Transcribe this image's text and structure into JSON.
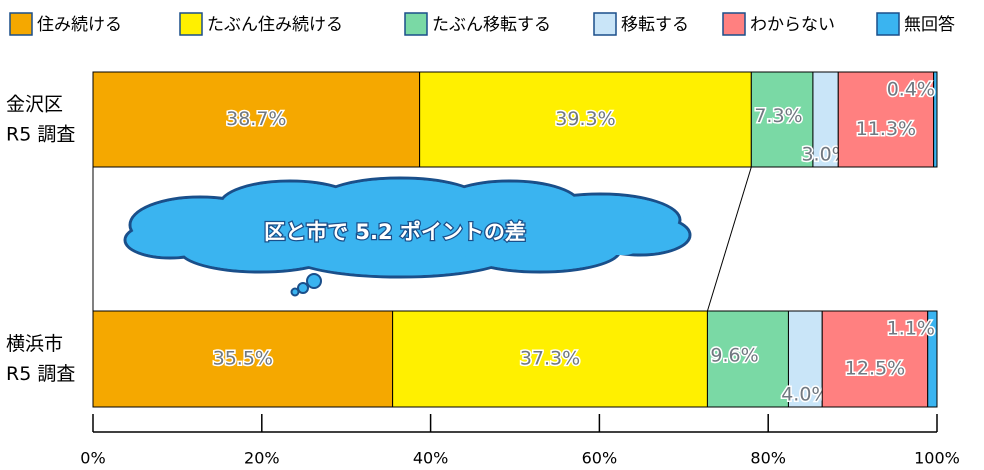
{
  "chart_data": {
    "type": "stacked-bar-horizontal",
    "categories": [
      "金沢区\nR5 調査",
      "横浜市\nR5 調査"
    ],
    "series": [
      {
        "name": "住み続ける",
        "color": "#f5a800",
        "values": [
          38.7,
          35.5
        ],
        "value_labels": [
          "38.7%",
          "35.5%"
        ]
      },
      {
        "name": "たぶん住み続ける",
        "color": "#fff000",
        "values": [
          39.3,
          37.3
        ],
        "value_labels": [
          "39.3%",
          "37.3%"
        ]
      },
      {
        "name": "たぶん移転する",
        "color": "#7ad9a5",
        "values": [
          7.3,
          9.6
        ],
        "value_labels": [
          "7.3%",
          "9.6%"
        ]
      },
      {
        "name": "移転する",
        "color": "#c9e5f8",
        "values": [
          3.0,
          4.0
        ],
        "value_labels": [
          "3.0%",
          "4.0%"
        ]
      },
      {
        "name": "わからない",
        "color": "#ff8080",
        "values": [
          11.3,
          12.5
        ],
        "value_labels": [
          "11.3%",
          "12.5%"
        ]
      },
      {
        "name": "無回答",
        "color": "#3ab4f0",
        "values": [
          0.4,
          1.1
        ],
        "value_labels": [
          "0.4%",
          "1.1%"
        ]
      }
    ],
    "xlim": [
      0,
      100
    ],
    "xticks": [
      {
        "value": 0,
        "label": "0%"
      },
      {
        "value": 20,
        "label": "20%"
      },
      {
        "value": 40,
        "label": "40%"
      },
      {
        "value": 60,
        "label": "60%"
      },
      {
        "value": 80,
        "label": "80%"
      },
      {
        "value": 100,
        "label": "100%"
      }
    ],
    "annotation": "区と市で 5.2 ポイントの差",
    "legend": "top"
  }
}
